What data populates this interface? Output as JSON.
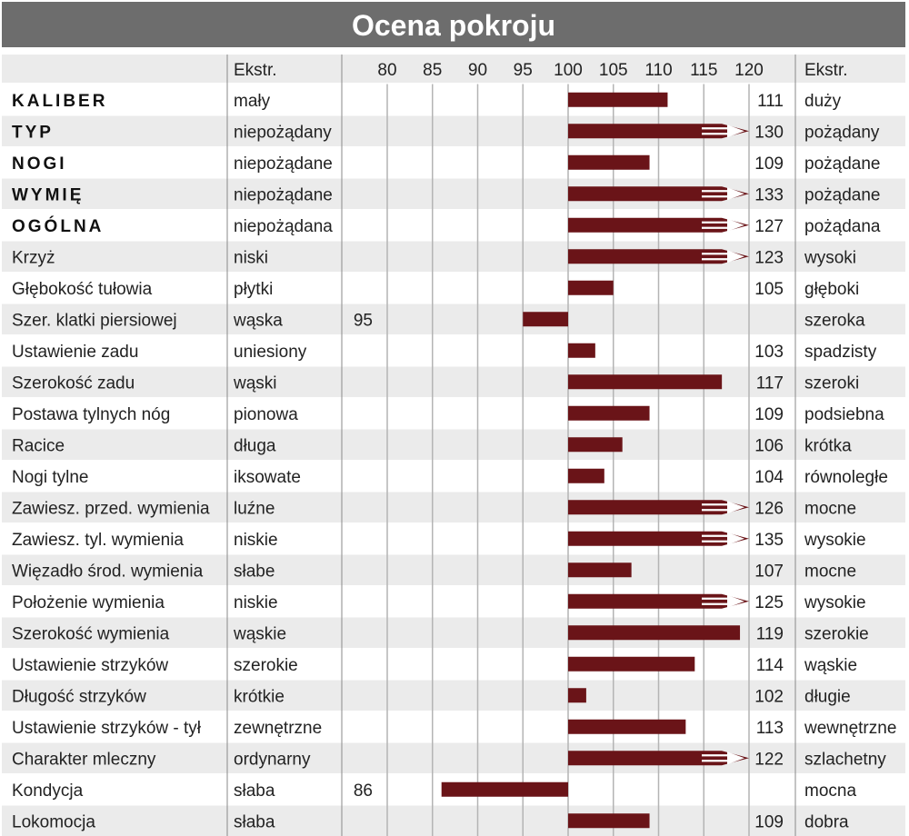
{
  "title": "Ocena pokroju",
  "colors": {
    "bar": "#6a1418",
    "header_bg": "#6d6d6d",
    "row_shade": "#ebebeb",
    "grid": "#b4b4b4"
  },
  "header": {
    "col_ext_left": "Ekstr.",
    "col_ext_right": "Ekstr."
  },
  "chart_data": {
    "type": "bar",
    "orientation": "horizontal",
    "baseline": 100,
    "xlim": [
      77,
      122
    ],
    "ticks": [
      80,
      85,
      90,
      95,
      100,
      105,
      110,
      115,
      120
    ],
    "grid": true,
    "overflow_marker_above": 120,
    "rows": [
      {
        "trait": "KALIBER",
        "bold": true,
        "left": "mały",
        "right": "duży",
        "value": 111
      },
      {
        "trait": "TYP",
        "bold": true,
        "left": "niepożądany",
        "right": "pożądany",
        "value": 130
      },
      {
        "trait": "NOGI",
        "bold": true,
        "left": "niepożądane",
        "right": "pożądane",
        "value": 109
      },
      {
        "trait": "WYMIĘ",
        "bold": true,
        "left": "niepożądane",
        "right": "pożądane",
        "value": 133
      },
      {
        "trait": "OGÓLNA",
        "bold": true,
        "left": "niepożądana",
        "right": "pożądana",
        "value": 127
      },
      {
        "trait": "Krzyż",
        "bold": false,
        "left": "niski",
        "right": "wysoki",
        "value": 123
      },
      {
        "trait": "Głębokość tułowia",
        "bold": false,
        "left": "płytki",
        "right": "głęboki",
        "value": 105
      },
      {
        "trait": "Szer. klatki piersiowej",
        "bold": false,
        "left": "wąska",
        "right": "szeroka",
        "value": 95
      },
      {
        "trait": "Ustawienie zadu",
        "bold": false,
        "left": "uniesiony",
        "right": "spadzisty",
        "value": 103
      },
      {
        "trait": "Szerokość zadu",
        "bold": false,
        "left": "wąski",
        "right": "szeroki",
        "value": 117
      },
      {
        "trait": "Postawa tylnych nóg",
        "bold": false,
        "left": "pionowa",
        "right": "podsiebna",
        "value": 109
      },
      {
        "trait": "Racice",
        "bold": false,
        "left": "długa",
        "right": "krótka",
        "value": 106
      },
      {
        "trait": "Nogi tylne",
        "bold": false,
        "left": "iksowate",
        "right": "równoległe",
        "value": 104
      },
      {
        "trait": "Zawiesz. przed. wymienia",
        "bold": false,
        "left": "luźne",
        "right": "mocne",
        "value": 126
      },
      {
        "trait": "Zawiesz. tyl. wymienia",
        "bold": false,
        "left": "niskie",
        "right": "wysokie",
        "value": 135
      },
      {
        "trait": "Więzadło środ. wymienia",
        "bold": false,
        "left": "słabe",
        "right": "mocne",
        "value": 107
      },
      {
        "trait": "Położenie wymienia",
        "bold": false,
        "left": "niskie",
        "right": "wysokie",
        "value": 125
      },
      {
        "trait": "Szerokość wymienia",
        "bold": false,
        "left": "wąskie",
        "right": "szerokie",
        "value": 119
      },
      {
        "trait": "Ustawienie strzyków",
        "bold": false,
        "left": "szerokie",
        "right": "wąskie",
        "value": 114
      },
      {
        "trait": "Długość strzyków",
        "bold": false,
        "left": "krótkie",
        "right": "długie",
        "value": 102
      },
      {
        "trait": "Ustawienie strzyków - tył",
        "bold": false,
        "left": "zewnętrzne",
        "right": "wewnętrzne",
        "value": 113
      },
      {
        "trait": "Charakter mleczny",
        "bold": false,
        "left": "ordynarny",
        "right": "szlachetny",
        "value": 122
      },
      {
        "trait": "Kondycja",
        "bold": false,
        "left": "słaba",
        "right": "mocna",
        "value": 86
      },
      {
        "trait": "Lokomocja",
        "bold": false,
        "left": "słaba",
        "right": "dobra",
        "value": 109
      }
    ]
  }
}
